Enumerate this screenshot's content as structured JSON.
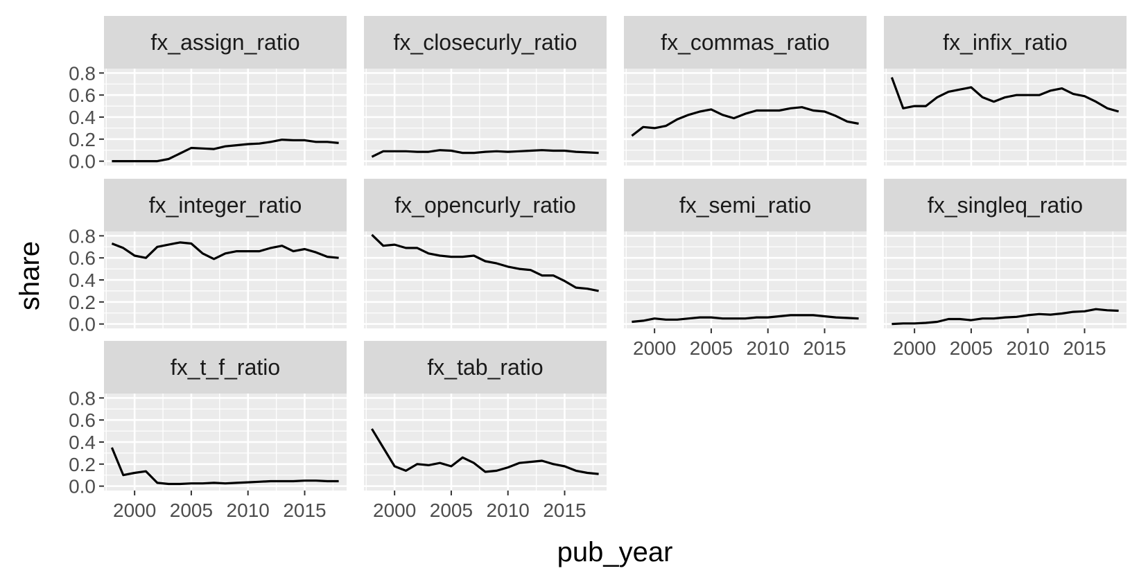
{
  "chart_data": {
    "type": "line",
    "xlabel": "pub_year",
    "ylabel": "share",
    "xlim": [
      1997.3,
      2018.7
    ],
    "ylim": [
      -0.04,
      0.84
    ],
    "x_ticks": [
      2000,
      2005,
      2010,
      2015
    ],
    "y_ticks": [
      0.0,
      0.2,
      0.4,
      0.6,
      0.8
    ],
    "y_tick_labels": [
      "0.0",
      "0.2",
      "0.4",
      "0.6",
      "0.8"
    ],
    "grid": true,
    "x": [
      1998,
      1999,
      2000,
      2001,
      2002,
      2003,
      2004,
      2005,
      2006,
      2007,
      2008,
      2009,
      2010,
      2011,
      2012,
      2013,
      2014,
      2015,
      2016,
      2017,
      2018
    ],
    "panels": [
      {
        "title": "fx_assign_ratio",
        "values": [
          0.0,
          0.0,
          0.0,
          0.0,
          0.0,
          0.02,
          0.07,
          0.12,
          0.115,
          0.11,
          0.135,
          0.145,
          0.155,
          0.16,
          0.175,
          0.195,
          0.19,
          0.19,
          0.175,
          0.175,
          0.165
        ]
      },
      {
        "title": "fx_closecurly_ratio",
        "values": [
          0.04,
          0.09,
          0.09,
          0.09,
          0.085,
          0.085,
          0.1,
          0.095,
          0.075,
          0.075,
          0.085,
          0.09,
          0.085,
          0.09,
          0.095,
          0.1,
          0.095,
          0.095,
          0.085,
          0.08,
          0.075
        ]
      },
      {
        "title": "fx_commas_ratio",
        "values": [
          0.23,
          0.31,
          0.3,
          0.32,
          0.38,
          0.42,
          0.45,
          0.47,
          0.42,
          0.39,
          0.43,
          0.46,
          0.46,
          0.46,
          0.48,
          0.49,
          0.46,
          0.45,
          0.41,
          0.36,
          0.34
        ]
      },
      {
        "title": "fx_infix_ratio",
        "values": [
          0.76,
          0.48,
          0.5,
          0.5,
          0.58,
          0.63,
          0.65,
          0.67,
          0.58,
          0.54,
          0.58,
          0.6,
          0.6,
          0.6,
          0.64,
          0.66,
          0.61,
          0.59,
          0.54,
          0.48,
          0.45
        ]
      },
      {
        "title": "fx_integer_ratio",
        "values": [
          0.73,
          0.69,
          0.62,
          0.6,
          0.7,
          0.72,
          0.74,
          0.73,
          0.64,
          0.59,
          0.64,
          0.66,
          0.66,
          0.66,
          0.69,
          0.71,
          0.66,
          0.68,
          0.65,
          0.61,
          0.6
        ]
      },
      {
        "title": "fx_opencurly_ratio",
        "values": [
          0.81,
          0.71,
          0.72,
          0.69,
          0.69,
          0.64,
          0.62,
          0.61,
          0.61,
          0.62,
          0.57,
          0.55,
          0.52,
          0.5,
          0.49,
          0.44,
          0.44,
          0.39,
          0.33,
          0.32,
          0.3
        ]
      },
      {
        "title": "fx_semi_ratio",
        "values": [
          0.02,
          0.03,
          0.05,
          0.04,
          0.04,
          0.05,
          0.06,
          0.06,
          0.05,
          0.05,
          0.05,
          0.06,
          0.06,
          0.07,
          0.08,
          0.08,
          0.08,
          0.07,
          0.06,
          0.055,
          0.05
        ]
      },
      {
        "title": "fx_singleq_ratio",
        "values": [
          0.0,
          0.005,
          0.005,
          0.01,
          0.02,
          0.045,
          0.045,
          0.035,
          0.05,
          0.05,
          0.06,
          0.065,
          0.08,
          0.09,
          0.085,
          0.095,
          0.11,
          0.115,
          0.135,
          0.125,
          0.12
        ]
      },
      {
        "title": "fx_t_f_ratio",
        "values": [
          0.35,
          0.1,
          0.12,
          0.135,
          0.03,
          0.02,
          0.02,
          0.025,
          0.025,
          0.03,
          0.025,
          0.03,
          0.035,
          0.04,
          0.045,
          0.045,
          0.045,
          0.05,
          0.05,
          0.045,
          0.045
        ]
      },
      {
        "title": "fx_tab_ratio",
        "values": [
          0.52,
          0.35,
          0.18,
          0.14,
          0.2,
          0.19,
          0.21,
          0.18,
          0.26,
          0.21,
          0.13,
          0.14,
          0.17,
          0.21,
          0.22,
          0.23,
          0.2,
          0.18,
          0.14,
          0.12,
          0.11
        ]
      }
    ]
  }
}
